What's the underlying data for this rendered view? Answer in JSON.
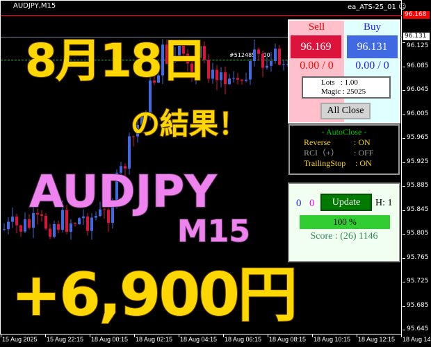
{
  "chart": {
    "symbol": "AUDJPY,M15",
    "ea_name": "ea_ATS-25_01",
    "smiley_icon": "smiley-face-icon",
    "order_label": "#512485",
    "order_label_tail": ".00",
    "price_labels": [
      "96.125",
      "96.085",
      "96.045",
      "96.005",
      "95.965",
      "95.925",
      "95.885",
      "95.845",
      "95.805",
      "95.765",
      "95.725",
      "95.685",
      "95.645"
    ],
    "ask_price": "96.168",
    "bid_price": "96.131",
    "time_labels": [
      "15 Aug 2025",
      "15 Aug 22:15",
      "18 Aug 00:15",
      "18 Aug 02:15",
      "18 Aug 04:15",
      "18 Aug 06:15",
      "18 Aug 08:15",
      "18 Aug 10:15",
      "18 Aug 12:15",
      "18 Aug 14"
    ],
    "colors": {
      "bull": "#4169e1",
      "bear": "#dc143c",
      "ask_line": "#ff0000",
      "bid_line": "#778899",
      "order_line": "#32cd32"
    }
  },
  "overlay": {
    "date": "8月18日",
    "result": "の結果！",
    "pair": "AUDJPY",
    "timeframe": "M15",
    "profit": "+6,900円",
    "colors": {
      "yellow": "#ffd700",
      "pink": "#ee82ee"
    }
  },
  "trade_panel": {
    "sell_label": "Sell",
    "buy_label": "Buy",
    "sell_price": "96.169",
    "buy_price": "96.131",
    "sell_pl": "0.00 / 0",
    "buy_pl": "0.00 / 0",
    "lots": "Lots   : 1.00",
    "magic": "Magic : 25025",
    "all_close": "All Close"
  },
  "autoclose": {
    "title": "- AutoClose -",
    "rows": [
      {
        "label": "Reverse",
        "value": ": ON",
        "active": true
      },
      {
        "label": "RCI（+）",
        "value": ": OFF",
        "active": false
      },
      {
        "label": "TrailingStop",
        "value": ": ON",
        "active": true
      }
    ]
  },
  "status_panel": {
    "count_blue": "0",
    "count_magenta": "0",
    "update": "Update",
    "h_label": "H: 1",
    "progress": 100,
    "progress_text": "100 %",
    "score": "Score : (26) 1146"
  }
}
